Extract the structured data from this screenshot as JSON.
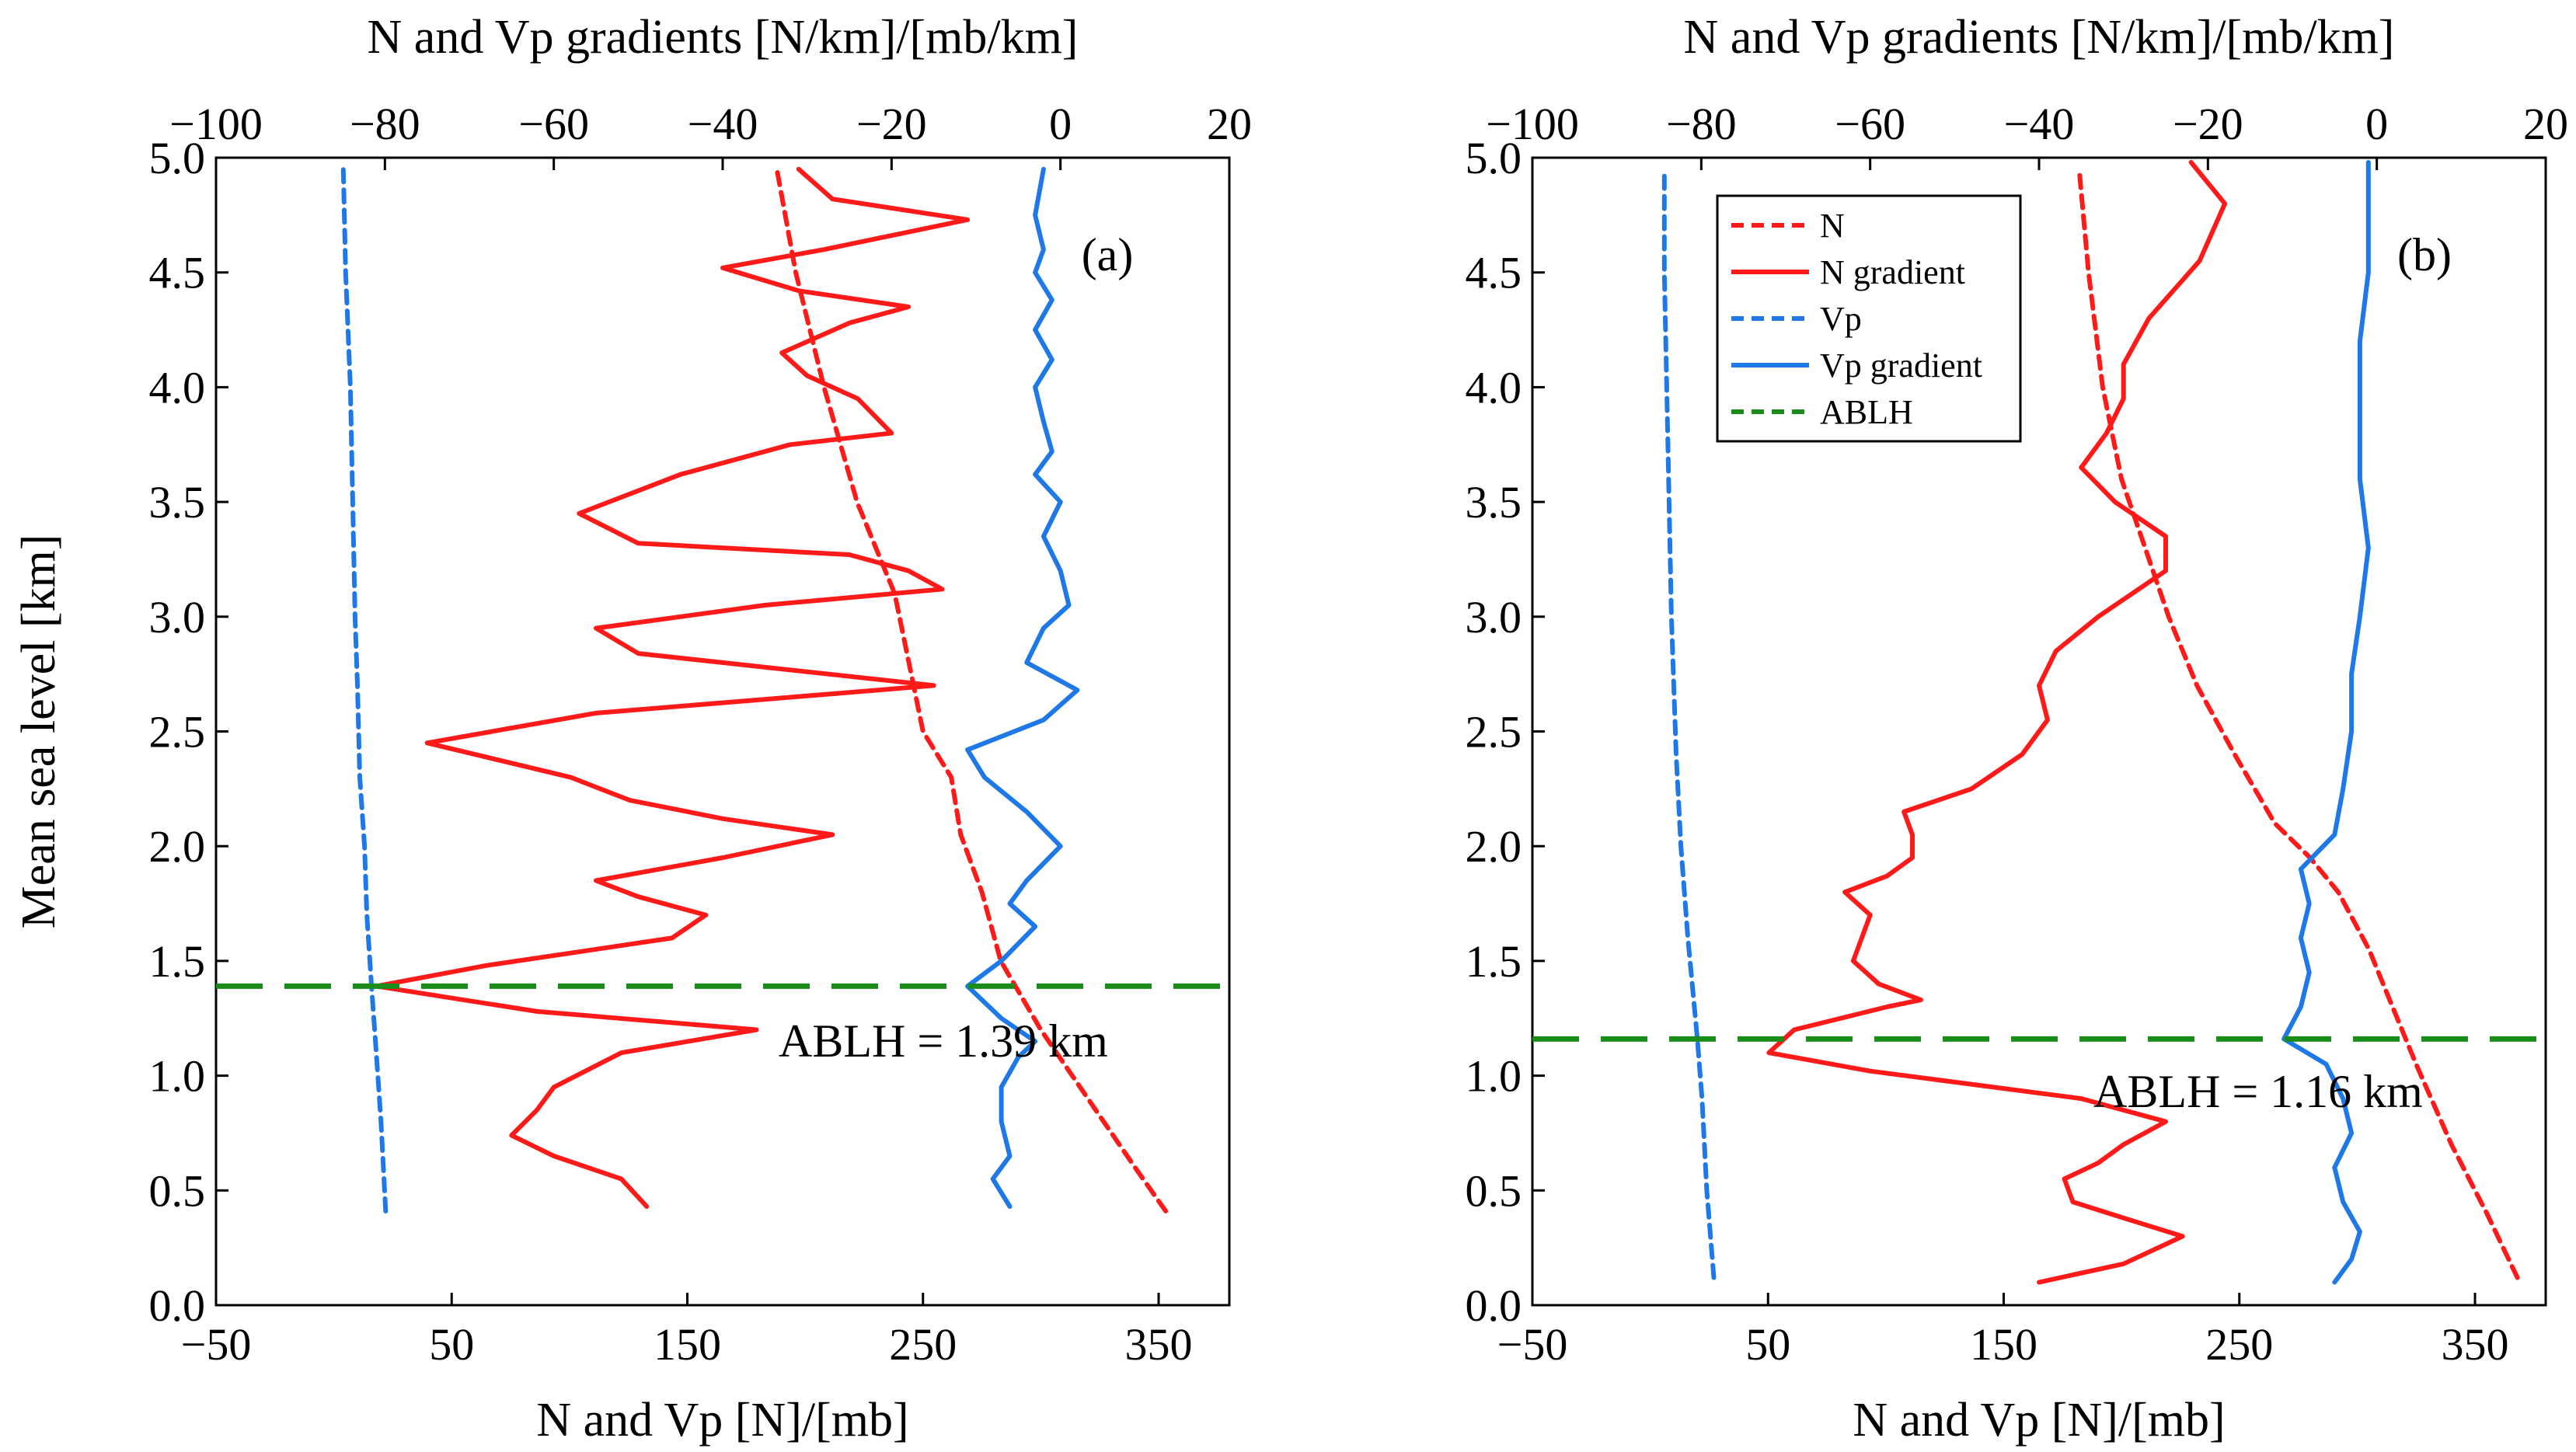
{
  "chart_data": [
    {
      "panel": "a",
      "type": "line",
      "panel_label": "(a)",
      "xlabel_bottom": "N and Vp [N]/[mb]",
      "xlabel_top": "N and Vp gradients [N/km]/[mb/km]",
      "ylabel": "Mean sea level [km]",
      "xlim_bottom": [
        -50,
        380
      ],
      "xlim_top": [
        -100,
        20
      ],
      "ylim": [
        0,
        5
      ],
      "xticks_bottom": [
        "−50",
        "50",
        "150",
        "250",
        "350"
      ],
      "xticks_top": [
        "−100",
        "−80",
        "−60",
        "−40",
        "−20",
        "0",
        "20"
      ],
      "yticks": [
        "0.0",
        "0.5",
        "1.0",
        "1.5",
        "2.0",
        "2.5",
        "3.0",
        "3.5",
        "4.0",
        "4.5",
        "5.0"
      ],
      "annotation": "ABLH = 1.39 km",
      "ablh": 1.39,
      "colors": {
        "n": "#ff1a1a",
        "vp": "#1e78e6",
        "ablh": "#1a8c1a"
      },
      "series": [
        {
          "name": "N",
          "axis": "bottom",
          "style": "dashed",
          "color": "#ff1a1a",
          "points": [
            [
              353,
              0.41
            ],
            [
              340,
              0.6
            ],
            [
              320,
              0.9
            ],
            [
              300,
              1.2
            ],
            [
              283,
              1.5
            ],
            [
              275,
              1.8
            ],
            [
              266,
              2.05
            ],
            [
              262,
              2.3
            ],
            [
              250,
              2.5
            ],
            [
              244,
              2.8
            ],
            [
              238,
              3.1
            ],
            [
              222,
              3.5
            ],
            [
              208,
              4.0
            ],
            [
              196,
              4.5
            ],
            [
              188,
              4.95
            ]
          ]
        },
        {
          "name": "N gradient",
          "axis": "top",
          "style": "solid",
          "color": "#ff1a1a",
          "points": [
            [
              -49,
              0.43
            ],
            [
              -52,
              0.55
            ],
            [
              -60,
              0.65
            ],
            [
              -65,
              0.74
            ],
            [
              -62,
              0.85
            ],
            [
              -60,
              0.95
            ],
            [
              -52,
              1.1
            ],
            [
              -36,
              1.2
            ],
            [
              -62,
              1.28
            ],
            [
              -81,
              1.39
            ],
            [
              -68,
              1.48
            ],
            [
              -46,
              1.6
            ],
            [
              -42,
              1.7
            ],
            [
              -50,
              1.78
            ],
            [
              -55,
              1.85
            ],
            [
              -40,
              1.95
            ],
            [
              -27,
              2.05
            ],
            [
              -40,
              2.12
            ],
            [
              -51,
              2.2
            ],
            [
              -58,
              2.3
            ],
            [
              -75,
              2.45
            ],
            [
              -55,
              2.58
            ],
            [
              -15,
              2.7
            ],
            [
              -50,
              2.84
            ],
            [
              -55,
              2.95
            ],
            [
              -35,
              3.05
            ],
            [
              -14,
              3.12
            ],
            [
              -18,
              3.2
            ],
            [
              -25,
              3.27
            ],
            [
              -50,
              3.32
            ],
            [
              -57,
              3.45
            ],
            [
              -45,
              3.62
            ],
            [
              -32,
              3.75
            ],
            [
              -20,
              3.8
            ],
            [
              -24,
              3.95
            ],
            [
              -30,
              4.05
            ],
            [
              -33,
              4.15
            ],
            [
              -25,
              4.28
            ],
            [
              -18,
              4.35
            ],
            [
              -31,
              4.42
            ],
            [
              -40,
              4.52
            ],
            [
              -28,
              4.6
            ],
            [
              -11,
              4.73
            ],
            [
              -27,
              4.82
            ],
            [
              -31,
              4.95
            ]
          ]
        },
        {
          "name": "Vp",
          "axis": "bottom",
          "style": "dashed",
          "color": "#1e78e6",
          "points": [
            [
              22,
              0.41
            ],
            [
              20,
              0.8
            ],
            [
              18,
              1.1
            ],
            [
              16,
              1.39
            ],
            [
              14,
              1.7
            ],
            [
              13,
              2.0
            ],
            [
              11,
              2.3
            ],
            [
              10,
              2.7
            ],
            [
              9,
              3.0
            ],
            [
              8,
              3.5
            ],
            [
              7,
              4.0
            ],
            [
              5,
              4.5
            ],
            [
              4,
              4.95
            ]
          ]
        },
        {
          "name": "Vp gradient",
          "axis": "top",
          "style": "solid",
          "color": "#1e78e6",
          "points": [
            [
              -6,
              0.43
            ],
            [
              -8,
              0.55
            ],
            [
              -6,
              0.65
            ],
            [
              -7,
              0.8
            ],
            [
              -7,
              0.95
            ],
            [
              -5,
              1.08
            ],
            [
              -3,
              1.15
            ],
            [
              -7,
              1.25
            ],
            [
              -11,
              1.39
            ],
            [
              -7,
              1.5
            ],
            [
              -3,
              1.65
            ],
            [
              -6,
              1.75
            ],
            [
              -4,
              1.85
            ],
            [
              0,
              2.0
            ],
            [
              -4,
              2.15
            ],
            [
              -9,
              2.3
            ],
            [
              -11,
              2.42
            ],
            [
              -2,
              2.55
            ],
            [
              2,
              2.68
            ],
            [
              -4,
              2.8
            ],
            [
              -2,
              2.95
            ],
            [
              1,
              3.05
            ],
            [
              0,
              3.2
            ],
            [
              -2,
              3.35
            ],
            [
              0,
              3.5
            ],
            [
              -3,
              3.62
            ],
            [
              -1,
              3.72
            ],
            [
              -2,
              3.85
            ],
            [
              -3,
              4.0
            ],
            [
              -1,
              4.12
            ],
            [
              -3,
              4.25
            ],
            [
              -1,
              4.38
            ],
            [
              -3,
              4.5
            ],
            [
              -2,
              4.6
            ],
            [
              -3,
              4.75
            ],
            [
              -2,
              4.95
            ]
          ]
        }
      ]
    },
    {
      "panel": "b",
      "type": "line",
      "panel_label": "(b)",
      "xlabel_bottom": "N and Vp [N]/[mb]",
      "xlabel_top": "N and Vp gradients [N/km]/[mb/km]",
      "ylabel": "",
      "xlim_bottom": [
        -50,
        380
      ],
      "xlim_top": [
        -100,
        20
      ],
      "ylim": [
        0,
        5
      ],
      "xticks_bottom": [
        "−50",
        "50",
        "150",
        "250",
        "350"
      ],
      "xticks_top": [
        "−100",
        "−80",
        "−60",
        "−40",
        "−20",
        "0",
        "20"
      ],
      "yticks": [
        "0.0",
        "0.5",
        "1.0",
        "1.5",
        "2.0",
        "2.5",
        "3.0",
        "3.5",
        "4.0",
        "4.5",
        "5.0"
      ],
      "annotation": "ABLH = 1.16 km",
      "ablh": 1.16,
      "colors": {
        "n": "#ff1a1a",
        "vp": "#1e78e6",
        "ablh": "#1a8c1a"
      },
      "series": [
        {
          "name": "N",
          "axis": "bottom",
          "style": "dashed",
          "color": "#ff1a1a",
          "points": [
            [
              368,
              0.12
            ],
            [
              355,
              0.4
            ],
            [
              340,
              0.7
            ],
            [
              325,
              1.05
            ],
            [
              315,
              1.3
            ],
            [
              305,
              1.55
            ],
            [
              292,
              1.8
            ],
            [
              280,
              1.95
            ],
            [
              265,
              2.1
            ],
            [
              248,
              2.4
            ],
            [
              232,
              2.7
            ],
            [
              220,
              3.0
            ],
            [
              210,
              3.3
            ],
            [
              200,
              3.6
            ],
            [
              192,
              4.0
            ],
            [
              186,
              4.5
            ],
            [
              182,
              4.95
            ]
          ]
        },
        {
          "name": "N gradient",
          "axis": "top",
          "style": "solid",
          "color": "#ff1a1a",
          "points": [
            [
              -40,
              0.1
            ],
            [
              -30,
              0.18
            ],
            [
              -23,
              0.3
            ],
            [
              -30,
              0.38
            ],
            [
              -36,
              0.45
            ],
            [
              -37,
              0.55
            ],
            [
              -33,
              0.62
            ],
            [
              -30,
              0.7
            ],
            [
              -25,
              0.8
            ],
            [
              -35,
              0.9
            ],
            [
              -60,
              1.02
            ],
            [
              -72,
              1.1
            ],
            [
              -69,
              1.2
            ],
            [
              -58,
              1.3
            ],
            [
              -54,
              1.33
            ],
            [
              -59,
              1.4
            ],
            [
              -62,
              1.5
            ],
            [
              -61,
              1.6
            ],
            [
              -60,
              1.7
            ],
            [
              -63,
              1.8
            ],
            [
              -58,
              1.87
            ],
            [
              -55,
              1.95
            ],
            [
              -55,
              2.05
            ],
            [
              -56,
              2.15
            ],
            [
              -48,
              2.25
            ],
            [
              -42,
              2.4
            ],
            [
              -39,
              2.55
            ],
            [
              -40,
              2.7
            ],
            [
              -38,
              2.85
            ],
            [
              -33,
              3.0
            ],
            [
              -25,
              3.2
            ],
            [
              -25,
              3.35
            ],
            [
              -31,
              3.5
            ],
            [
              -35,
              3.65
            ],
            [
              -32,
              3.8
            ],
            [
              -30,
              3.95
            ],
            [
              -30,
              4.1
            ],
            [
              -27,
              4.3
            ],
            [
              -21,
              4.55
            ],
            [
              -18,
              4.8
            ],
            [
              -22,
              4.98
            ]
          ]
        },
        {
          "name": "Vp",
          "axis": "bottom",
          "style": "dashed",
          "color": "#1e78e6",
          "points": [
            [
              27,
              0.12
            ],
            [
              24,
              0.5
            ],
            [
              22,
              0.9
            ],
            [
              20,
              1.16
            ],
            [
              16,
              1.6
            ],
            [
              13,
              2.0
            ],
            [
              11,
              2.4
            ],
            [
              9,
              3.0
            ],
            [
              8,
              3.5
            ],
            [
              7,
              4.0
            ],
            [
              6,
              4.5
            ],
            [
              6,
              4.95
            ]
          ]
        },
        {
          "name": "Vp gradient",
          "axis": "top",
          "style": "solid",
          "color": "#1e78e6",
          "points": [
            [
              -5,
              0.1
            ],
            [
              -3,
              0.2
            ],
            [
              -2,
              0.32
            ],
            [
              -4,
              0.45
            ],
            [
              -5,
              0.6
            ],
            [
              -3,
              0.75
            ],
            [
              -4,
              0.9
            ],
            [
              -6,
              1.05
            ],
            [
              -11,
              1.16
            ],
            [
              -9,
              1.3
            ],
            [
              -8,
              1.45
            ],
            [
              -9,
              1.6
            ],
            [
              -8,
              1.75
            ],
            [
              -9,
              1.9
            ],
            [
              -5,
              2.05
            ],
            [
              -4,
              2.25
            ],
            [
              -3,
              2.5
            ],
            [
              -3,
              2.75
            ],
            [
              -2,
              3.0
            ],
            [
              -1,
              3.3
            ],
            [
              -2,
              3.6
            ],
            [
              -2,
              3.9
            ],
            [
              -2,
              4.2
            ],
            [
              -1,
              4.5
            ],
            [
              -1,
              4.8
            ],
            [
              -1,
              4.98
            ]
          ]
        }
      ]
    }
  ],
  "legend": {
    "entries": [
      {
        "label": "N",
        "color": "#ff1a1a",
        "style": "dashed"
      },
      {
        "label": "N gradient",
        "color": "#ff1a1a",
        "style": "solid"
      },
      {
        "label": "Vp",
        "color": "#1e78e6",
        "style": "dashed"
      },
      {
        "label": "Vp gradient",
        "color": "#1e78e6",
        "style": "solid"
      },
      {
        "label": "ABLH",
        "color": "#1a8c1a",
        "style": "dashed"
      }
    ]
  }
}
